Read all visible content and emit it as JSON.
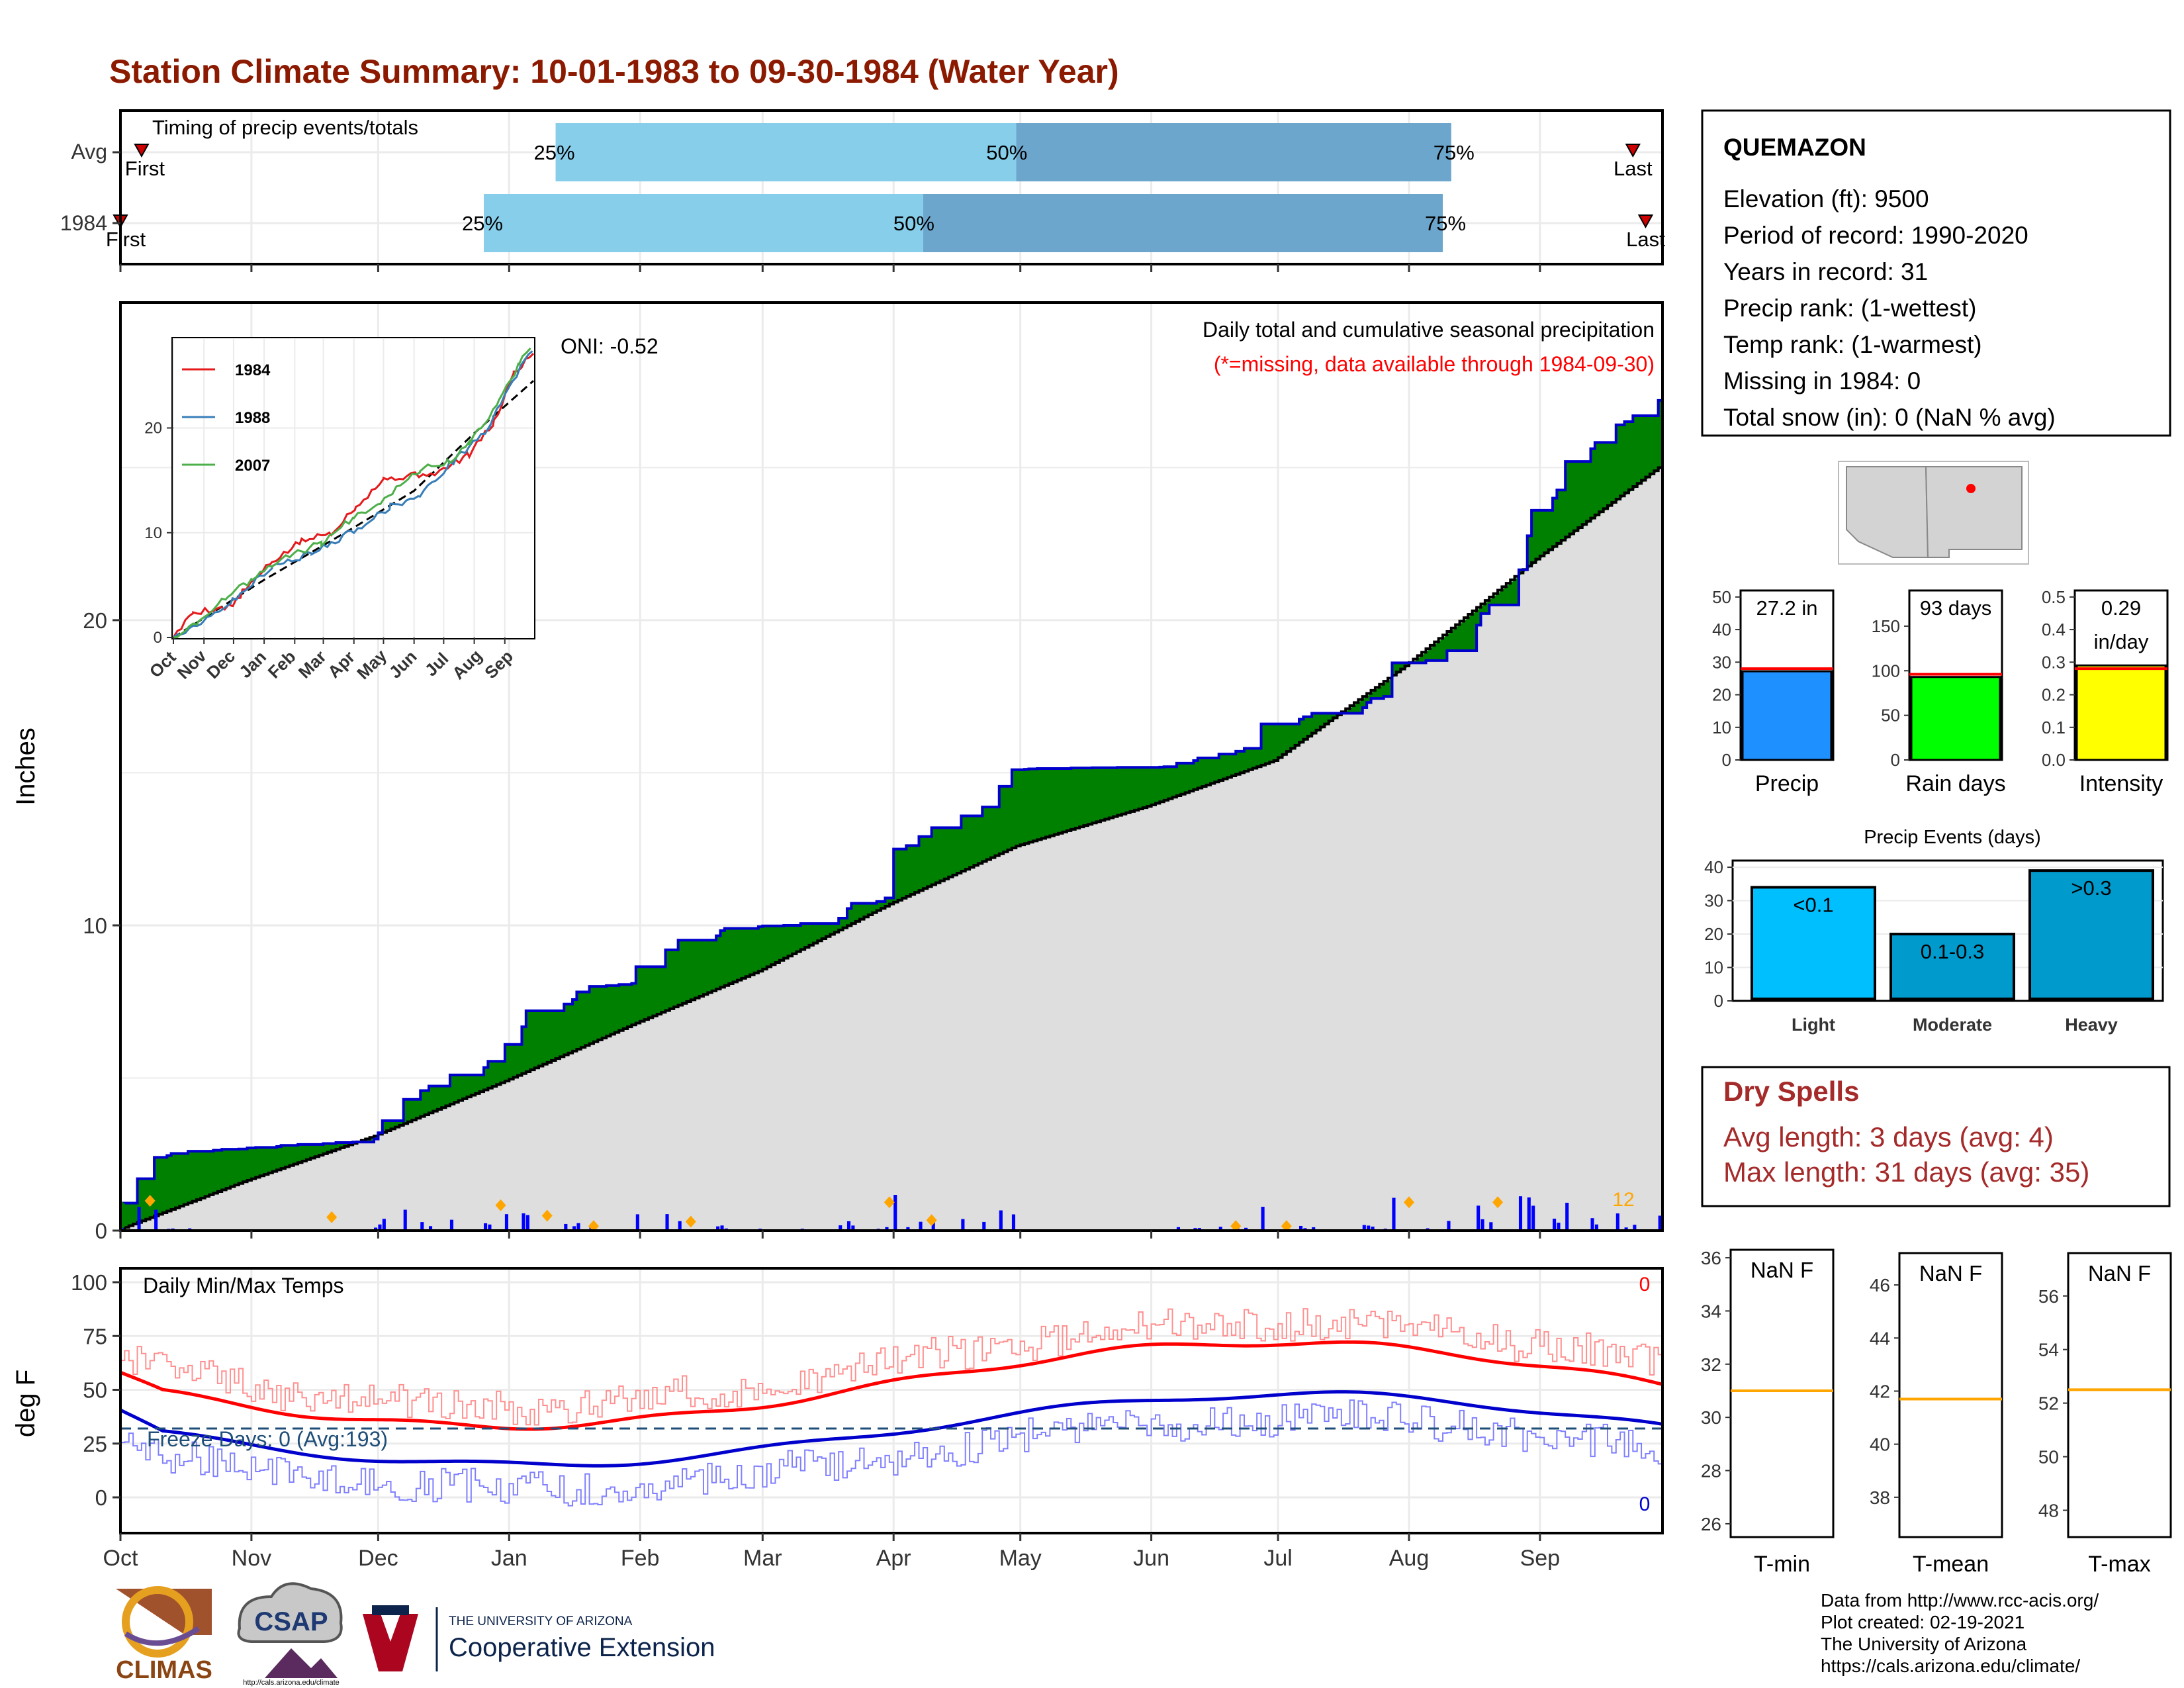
{
  "title": "Station Climate Summary: 10-01-1983 to 09-30-1984 (Water Year)",
  "colors": {
    "title": "#8B1A00",
    "cum_fill": "#008000",
    "cum_line": "#0000CC",
    "avg_fill": "#DEDEDE",
    "bars": "#0000FF",
    "marker": "#FFA500",
    "light_blue": "#87CEEB",
    "mid_blue": "#6CA6CD",
    "precip_bar": "#1E90FF",
    "rain_bar": "#00FF00",
    "intensity_bar": "#FFFF00",
    "events_light": "#00BFFF",
    "events_moderate": "#009ACD",
    "events_heavy": "#009ACD",
    "dry_spell_text": "#A52A2A",
    "tmax": "#FF0000",
    "tmin": "#0000CC"
  },
  "timing": {
    "title": "Timing of precip events/totals",
    "rows": [
      {
        "label": "Avg",
        "first_label": "First",
        "last_label": "Last",
        "q25": "25%",
        "q50": "50%",
        "q75": "75%",
        "q25_day": 103,
        "q50_day": 212,
        "q75_day": 315,
        "first_day": 5,
        "last_day": 358
      },
      {
        "label": "1984",
        "first_label": "First",
        "last_label": "Last",
        "q25": "25%",
        "q50": "50%",
        "q75": "75%",
        "q25_day": 86,
        "q50_day": 190,
        "q75_day": 313,
        "first_day": 0,
        "last_day": 361
      }
    ]
  },
  "months": [
    "Oct",
    "Nov",
    "Dec",
    "Jan",
    "Feb",
    "Mar",
    "Apr",
    "May",
    "Jun",
    "Jul",
    "Aug",
    "Sep"
  ],
  "month_start_days": [
    0,
    31,
    61,
    92,
    123,
    152,
    183,
    213,
    244,
    274,
    305,
    336
  ],
  "precip": {
    "title": "Daily total and cumulative seasonal precipitation",
    "subtitle": "(*=missing, data available through 1984-09-30)",
    "ylabel": "Inches",
    "oni": "ONI: -0.52",
    "count_label": "12",
    "yticks": [
      0,
      10,
      20
    ]
  },
  "inset": {
    "legend": [
      "1984",
      "1988",
      "2007"
    ],
    "legend_colors": [
      "#E41A1C",
      "#377EB8",
      "#4DAF4A"
    ],
    "yticks": [
      0,
      10,
      20
    ],
    "xticks": [
      "Oct",
      "Nov",
      "Dec",
      "Jan",
      "Feb",
      "Mar",
      "Apr",
      "May",
      "Jun",
      "Jul",
      "Aug",
      "Sep"
    ]
  },
  "temps": {
    "title": "Daily Min/Max Temps",
    "ylabel": "deg F",
    "freeze": "Freeze Days: 0 (Avg:193)",
    "max_missing": "0",
    "min_missing": "0",
    "yticks": [
      0,
      25,
      50,
      75,
      100
    ]
  },
  "station": {
    "name": "QUEMAZON",
    "lines": [
      "Elevation (ft): 9500",
      "Period of record: 1990-2020",
      "Years in record: 31",
      "Precip rank:  (1-wettest)",
      "Temp rank:  (1-warmest)",
      "Missing in 1984: 0",
      "Total snow (in): 0 (NaN % avg)"
    ]
  },
  "summary_bars": [
    {
      "label": "Precip",
      "value": 27.2,
      "avg": 28.0,
      "value_text": "27.2 in",
      "value_text2": "",
      "ymax": 52,
      "yticks": [
        0,
        10,
        20,
        30,
        40,
        50
      ],
      "color": "#1E90FF"
    },
    {
      "label": "Rain days",
      "value": 93,
      "avg": 96,
      "value_text": "93 days",
      "value_text2": "",
      "ymax": 190,
      "yticks": [
        0,
        50,
        100,
        150
      ],
      "color": "#00FF00"
    },
    {
      "label": "Intensity",
      "value": 0.29,
      "avg": 0.28,
      "value_text": "0.29",
      "value_text2": "in/day",
      "ymax": 0.52,
      "yticks": [
        "0.0",
        "0.1",
        "0.2",
        "0.3",
        "0.4",
        "0.5"
      ],
      "yvals": [
        0,
        0.1,
        0.2,
        0.3,
        0.4,
        0.5
      ],
      "color": "#FFFF00"
    }
  ],
  "events": {
    "title": "Precip Events (days)",
    "categories": [
      "Light",
      "Moderate",
      "Heavy"
    ],
    "bar_labels": [
      "<0.1",
      "0.1-0.3",
      ">0.3"
    ],
    "values": [
      34,
      20,
      39
    ],
    "yticks": [
      0,
      10,
      20,
      30,
      40
    ],
    "colors": [
      "#00BFFF",
      "#009ACD",
      "#009ACD"
    ]
  },
  "dry_spells": {
    "title": "Dry Spells",
    "avg": "Avg length: 3 days (avg: 4)",
    "max": "Max length: 31 days (avg: 35)"
  },
  "temp_boxes": [
    {
      "label": "T-min",
      "value_text": "NaN F",
      "avg": 31.0,
      "yticks": [
        26,
        28,
        30,
        32,
        34,
        36
      ],
      "ymin": 25.5,
      "ymax": 36.3
    },
    {
      "label": "T-mean",
      "value_text": "NaN F",
      "avg": 41.7,
      "yticks": [
        38,
        40,
        42,
        44,
        46
      ],
      "ymin": 36.5,
      "ymax": 47.2
    },
    {
      "label": "T-max",
      "value_text": "NaN F",
      "avg": 52.5,
      "yticks": [
        48,
        50,
        52,
        54,
        56
      ],
      "ymin": 47.0,
      "ymax": 57.6
    }
  ],
  "logos": {
    "climas": "CLIMAS",
    "csap": "CSAP",
    "csap_url": "http://cals.arizona.edu/climate",
    "ua_small": "THE UNIVERSITY OF ARIZONA",
    "ua_big": "Cooperative Extension"
  },
  "credits": [
    "Data from http://www.rcc-acis.org/",
    "Plot created: 02-19-2021",
    "The University of Arizona",
    "https://cals.arizona.edu/climate/"
  ]
}
